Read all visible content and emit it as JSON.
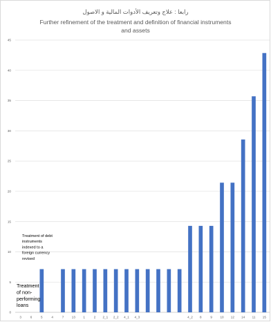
{
  "chart_data": {
    "type": "bar",
    "title_ar": "رابعا : علاج وتعريف الأدوات المالية و الاصول",
    "title_en_line1": "Further refinement of the treatment and definition of financial instruments",
    "title_en_line2": "and assets",
    "categories": [
      "3",
      "6",
      "5",
      "4",
      "7",
      "13",
      "1",
      "2",
      "2_1",
      "2_2",
      "4_1",
      "4_3",
      "",
      "",
      "",
      "",
      "4_2",
      "8",
      "9",
      "10",
      "12",
      "14",
      "11",
      "15"
    ],
    "values": [
      0,
      0,
      7.14,
      0,
      7.14,
      7.14,
      7.14,
      7.14,
      7.14,
      7.14,
      7.14,
      7.14,
      7.14,
      7.14,
      7.14,
      7.14,
      14.29,
      14.29,
      14.29,
      21.43,
      21.43,
      28.57,
      35.71,
      42.86
    ],
    "ylim": [
      0,
      45
    ],
    "yticks": [
      "0",
      "5",
      "10",
      "15",
      "20",
      "25",
      "30",
      "35",
      "40",
      "45"
    ],
    "grid": true,
    "bar_color": "#4472c4",
    "annotations": {
      "debt_lines": [
        "Treatment of debt",
        "instruments",
        "indexed to a",
        "foreign currency",
        "revised"
      ],
      "npl_lines": [
        "Treatment",
        "of non-",
        "performing",
        "loans"
      ]
    }
  }
}
